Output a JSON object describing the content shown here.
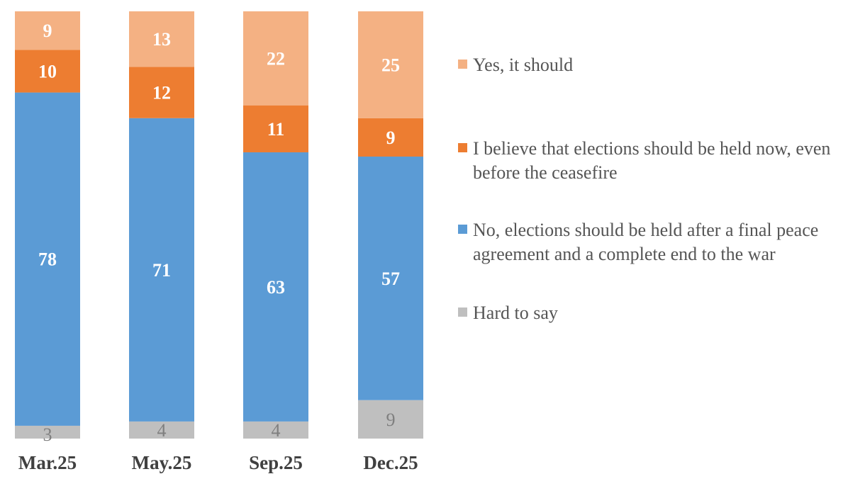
{
  "chart_data": {
    "type": "bar",
    "stacked": true,
    "percent": true,
    "title": "",
    "xlabel": "",
    "ylabel": "",
    "ylim": [
      0,
      100
    ],
    "grid": false,
    "legend_position": "right",
    "categories": [
      "Mar.25",
      "May.25",
      "Sep.25",
      "Dec.25"
    ],
    "series": [
      {
        "name": "Hard to say",
        "color": "#bfbfbf",
        "label_color": "#7f7f7f",
        "values": [
          3,
          4,
          4,
          9
        ]
      },
      {
        "name": "No, elections should be held after a final peace agreement and a complete end to the war",
        "color": "#5b9bd5",
        "label_color": "#ffffff",
        "values": [
          78,
          71,
          63,
          57
        ]
      },
      {
        "name": "I believe that elections should be held now, even before the ceasefire",
        "color": "#ed7d31",
        "label_color": "#ffffff",
        "values": [
          10,
          12,
          11,
          9
        ]
      },
      {
        "name": "Yes, it should",
        "color": "#f4b183",
        "label_color": "#ffffff",
        "values": [
          9,
          13,
          22,
          25
        ]
      }
    ]
  },
  "legend": [
    {
      "label": "Yes, it should",
      "color": "#f4b183"
    },
    {
      "label": "I believe that elections should be held now, even before the ceasefire",
      "color": "#ed7d31"
    },
    {
      "label": "No, elections should be held after a final peace agreement and a complete end to the war",
      "color": "#5b9bd5"
    },
    {
      "label": "Hard to say",
      "color": "#bfbfbf"
    }
  ]
}
